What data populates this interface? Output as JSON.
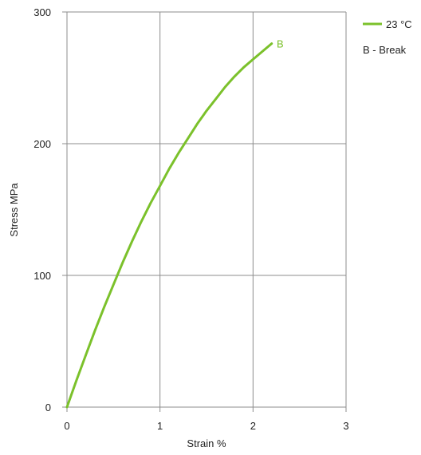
{
  "chart_data": {
    "type": "line",
    "xlabel": "Strain  %",
    "ylabel": "Stress  MPa",
    "xlim": [
      0,
      3
    ],
    "ylim": [
      0,
      300
    ],
    "x_ticks": [
      "0",
      "1",
      "2",
      "3"
    ],
    "y_ticks": [
      "0",
      "100",
      "200",
      "300"
    ],
    "grid": true,
    "legend_position": "top-right",
    "series": [
      {
        "name": "23 °C",
        "color": "#7bc12b",
        "x": [
          0,
          0.1,
          0.2,
          0.3,
          0.4,
          0.5,
          0.6,
          0.7,
          0.8,
          0.9,
          1.0,
          1.1,
          1.2,
          1.3,
          1.4,
          1.5,
          1.6,
          1.7,
          1.8,
          1.9,
          2.0,
          2.1,
          2.2
        ],
        "y": [
          0,
          20,
          39,
          58,
          76,
          93,
          110,
          126,
          141,
          155,
          168,
          181,
          193,
          204,
          215,
          225,
          234,
          243,
          251,
          258,
          264,
          270,
          276
        ]
      }
    ],
    "annotations": [
      {
        "text": "B",
        "x": 2.22,
        "y": 276,
        "color": "#7bc12b"
      }
    ],
    "legend_note": "B - Break"
  }
}
